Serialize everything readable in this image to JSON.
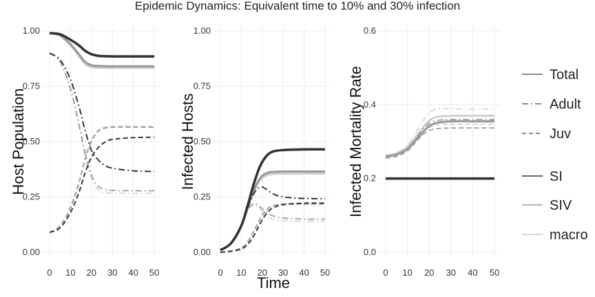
{
  "chart_data": {
    "type": "line",
    "title": "Epidemic Dynamics: Equivalent time to 10% and 30% infection",
    "xlabel": "Time",
    "grid": true,
    "legend_position": "right",
    "legend": {
      "linetypes": [
        {
          "label": "Total",
          "dash": "solid"
        },
        {
          "label": "Adult",
          "dash": "dotdash"
        },
        {
          "label": "Juv",
          "dash": "dashed"
        }
      ],
      "models": [
        {
          "label": "SI",
          "color": "#333333"
        },
        {
          "label": "SIV",
          "color": "#9a9a9a"
        },
        {
          "label": "macro",
          "color": "#cccccc"
        }
      ]
    },
    "models": [
      {
        "name": "SI",
        "color": "#333333"
      },
      {
        "name": "SIV",
        "color": "#9a9a9a"
      },
      {
        "name": "macro",
        "color": "#cccccc"
      }
    ],
    "panels": [
      {
        "id": "host-population",
        "ylabel": "Host Population",
        "xlim": [
          0,
          50
        ],
        "ylim": [
          0,
          1
        ],
        "x_ticks": [
          0,
          10,
          20,
          30,
          40,
          50
        ],
        "y_ticks": [
          "0.00",
          "0.25",
          "0.50",
          "0.75",
          "1.00"
        ],
        "x": [
          0,
          5,
          10,
          14,
          17,
          20,
          23,
          26,
          30,
          40,
          50
        ],
        "series": [
          {
            "model": "SI",
            "group": "Total",
            "values": [
              0.99,
              0.985,
              0.96,
              0.935,
              0.91,
              0.895,
              0.888,
              0.886,
              0.885,
              0.885,
              0.885
            ]
          },
          {
            "model": "SIV",
            "group": "Total",
            "values": [
              0.99,
              0.98,
              0.94,
              0.895,
              0.86,
              0.845,
              0.842,
              0.841,
              0.84,
              0.84,
              0.84
            ]
          },
          {
            "model": "macro",
            "group": "Total",
            "values": [
              0.99,
              0.978,
              0.935,
              0.885,
              0.85,
              0.836,
              0.834,
              0.833,
              0.833,
              0.833,
              0.833
            ]
          },
          {
            "model": "SI",
            "group": "Adult",
            "values": [
              0.9,
              0.87,
              0.78,
              0.66,
              0.55,
              0.46,
              0.42,
              0.395,
              0.38,
              0.368,
              0.365
            ]
          },
          {
            "model": "SIV",
            "group": "Adult",
            "values": [
              0.9,
              0.86,
              0.74,
              0.58,
              0.45,
              0.35,
              0.3,
              0.285,
              0.28,
              0.278,
              0.278
            ]
          },
          {
            "model": "macro",
            "group": "Adult",
            "values": [
              0.9,
              0.86,
              0.73,
              0.57,
              0.43,
              0.33,
              0.285,
              0.27,
              0.268,
              0.266,
              0.266
            ]
          },
          {
            "model": "SI",
            "group": "Juv",
            "values": [
              0.09,
              0.11,
              0.18,
              0.27,
              0.36,
              0.43,
              0.47,
              0.495,
              0.51,
              0.518,
              0.52
            ]
          },
          {
            "model": "SIV",
            "group": "Juv",
            "values": [
              0.09,
              0.12,
              0.2,
              0.31,
              0.42,
              0.5,
              0.545,
              0.56,
              0.565,
              0.565,
              0.565
            ]
          },
          {
            "model": "macro",
            "group": "Juv",
            "values": [
              0.09,
              0.12,
              0.21,
              0.32,
              0.43,
              0.51,
              0.55,
              0.565,
              0.57,
              0.57,
              0.57
            ]
          }
        ]
      },
      {
        "id": "infected-hosts",
        "ylabel": "Infected Hosts",
        "xlim": [
          0,
          50
        ],
        "ylim": [
          0,
          1
        ],
        "x_ticks": [
          0,
          10,
          20,
          30,
          40,
          50
        ],
        "y_ticks": [
          "0.00",
          "0.25",
          "0.50",
          "0.75",
          "1.00"
        ],
        "x": [
          0,
          5,
          10,
          13,
          16,
          19,
          22,
          25,
          30,
          40,
          50
        ],
        "series": [
          {
            "model": "SI",
            "group": "Total",
            "values": [
              0.01,
              0.04,
              0.12,
              0.21,
              0.31,
              0.39,
              0.435,
              0.455,
              0.462,
              0.465,
              0.465
            ]
          },
          {
            "model": "SIV",
            "group": "Total",
            "values": [
              0.01,
              0.04,
              0.12,
              0.2,
              0.28,
              0.335,
              0.357,
              0.363,
              0.365,
              0.365,
              0.365
            ]
          },
          {
            "model": "macro",
            "group": "Total",
            "values": [
              0.01,
              0.04,
              0.12,
              0.2,
              0.275,
              0.325,
              0.347,
              0.353,
              0.355,
              0.355,
              0.355
            ]
          },
          {
            "model": "SI",
            "group": "Adult",
            "values": [
              0.01,
              0.04,
              0.12,
              0.2,
              0.265,
              0.295,
              0.285,
              0.265,
              0.25,
              0.243,
              0.242
            ]
          },
          {
            "model": "SIV",
            "group": "Adult",
            "values": [
              0.01,
              0.04,
              0.12,
              0.19,
              0.22,
              0.205,
              0.18,
              0.165,
              0.155,
              0.15,
              0.15
            ]
          },
          {
            "model": "macro",
            "group": "Adult",
            "values": [
              0.01,
              0.04,
              0.12,
              0.19,
              0.215,
              0.195,
              0.165,
              0.15,
              0.143,
              0.14,
              0.14
            ]
          },
          {
            "model": "SI",
            "group": "Juv",
            "values": [
              0.0,
              0.005,
              0.015,
              0.035,
              0.075,
              0.13,
              0.175,
              0.2,
              0.215,
              0.222,
              0.222
            ]
          },
          {
            "model": "SIV",
            "group": "Juv",
            "values": [
              0.0,
              0.005,
              0.02,
              0.045,
              0.095,
              0.15,
              0.19,
              0.21,
              0.218,
              0.22,
              0.22
            ]
          },
          {
            "model": "macro",
            "group": "Juv",
            "values": [
              0.0,
              0.005,
              0.02,
              0.05,
              0.1,
              0.155,
              0.195,
              0.21,
              0.215,
              0.215,
              0.215
            ]
          }
        ]
      },
      {
        "id": "infected-mortality-rate",
        "ylabel": "Infected Mortality Rate",
        "xlim": [
          0,
          50
        ],
        "ylim": [
          0,
          0.6
        ],
        "x_ticks": [
          0,
          10,
          20,
          30,
          40,
          50
        ],
        "y_ticks": [
          "0.0",
          "0.2",
          "0.4",
          "0.6"
        ],
        "x": [
          0,
          5,
          10,
          14,
          17,
          20,
          23,
          26,
          30,
          40,
          50
        ],
        "series": [
          {
            "model": "SI",
            "group": "Total",
            "values": [
              0.2,
              0.2,
              0.2,
              0.2,
              0.2,
              0.2,
              0.2,
              0.2,
              0.2,
              0.2,
              0.2
            ]
          },
          {
            "model": "SIV",
            "group": "Total",
            "values": [
              0.26,
              0.265,
              0.28,
              0.305,
              0.325,
              0.342,
              0.35,
              0.353,
              0.355,
              0.355,
              0.355
            ]
          },
          {
            "model": "macro",
            "group": "Total",
            "values": [
              0.262,
              0.268,
              0.285,
              0.313,
              0.337,
              0.357,
              0.366,
              0.369,
              0.37,
              0.37,
              0.37
            ]
          },
          {
            "model": "SIV",
            "group": "Adult",
            "values": [
              0.26,
              0.265,
              0.282,
              0.31,
              0.333,
              0.35,
              0.357,
              0.359,
              0.36,
              0.36,
              0.36
            ]
          },
          {
            "model": "macro",
            "group": "Adult",
            "values": [
              0.263,
              0.27,
              0.29,
              0.325,
              0.355,
              0.378,
              0.388,
              0.39,
              0.389,
              0.388,
              0.388
            ]
          },
          {
            "model": "SIV",
            "group": "Juv",
            "values": [
              0.255,
              0.26,
              0.275,
              0.3,
              0.318,
              0.33,
              0.335,
              0.336,
              0.337,
              0.337,
              0.337
            ]
          },
          {
            "model": "macro",
            "group": "Juv",
            "values": [
              0.258,
              0.263,
              0.28,
              0.305,
              0.325,
              0.338,
              0.344,
              0.346,
              0.347,
              0.347,
              0.347
            ]
          }
        ]
      }
    ]
  }
}
